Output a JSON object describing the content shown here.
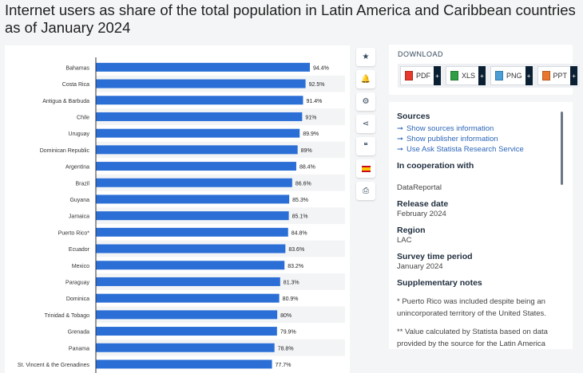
{
  "title": "Internet users as share of the total population in Latin America and Caribbean countries as of January 2024",
  "chart_data": {
    "type": "bar",
    "orientation": "horizontal",
    "categories": [
      "Bahamas",
      "Costa Rica",
      "Antigua & Barbuda",
      "Chile",
      "Uruguay",
      "Dominican Republic",
      "Argentina",
      "Brazil",
      "Guyana",
      "Jamaica",
      "Puerto Rico*",
      "Ecuador",
      "Mexico",
      "Paraguay",
      "Dominica",
      "Trinidad & Tobago",
      "Grenada",
      "Panama",
      "St. Vincent & the Grenadines"
    ],
    "values": [
      94.4,
      92.5,
      91.4,
      91,
      89.9,
      89,
      88.4,
      86.6,
      85.3,
      85.1,
      84.8,
      83.6,
      83.2,
      81.3,
      80.9,
      80,
      79.9,
      78.8,
      77.7
    ],
    "labels": [
      "94.4%",
      "92.5%",
      "91.4%",
      "91%",
      "89.9%",
      "89%",
      "88.4%",
      "86.6%",
      "85.3%",
      "85.1%",
      "84.8%",
      "83.6%",
      "83.2%",
      "81.3%",
      "80.9%",
      "80%",
      "79.9%",
      "78.8%",
      "77.7%"
    ],
    "xlim": [
      0,
      100
    ],
    "bar_color": "#2b6fd6",
    "grid": false
  },
  "toolbar": {
    "icons": [
      "star-icon",
      "bell-icon",
      "gear-icon",
      "share-icon",
      "quote-icon",
      "spanish-flag-icon",
      "print-icon"
    ],
    "glyphs": [
      "★",
      "🔔",
      "⚙",
      "⋖",
      "❝",
      "",
      "⎙"
    ]
  },
  "download": {
    "title": "DOWNLOAD",
    "buttons": [
      {
        "label": "PDF",
        "plus": "+"
      },
      {
        "label": "XLS",
        "plus": "+"
      },
      {
        "label": "PNG",
        "plus": "+"
      },
      {
        "label": "PPT",
        "plus": "+"
      }
    ]
  },
  "info": {
    "sources_heading": "Sources",
    "links": [
      "Show sources information",
      "Show publisher information",
      "Use Ask Statista Research Service"
    ],
    "link_arrow": "➞",
    "cooperation_heading": "In cooperation with",
    "cooperation_value": "DataReportal",
    "release_heading": "Release date",
    "release_value": "February 2024",
    "region_heading": "Region",
    "region_value": "LAC",
    "survey_heading": "Survey time period",
    "survey_value": "January 2024",
    "notes_heading": "Supplementary notes",
    "note1": "* Puerto Rico was included despite being an unincorporated territory of the United States.",
    "note2": "** Value calculated by Statista based on data provided by the source for the Latin America"
  }
}
